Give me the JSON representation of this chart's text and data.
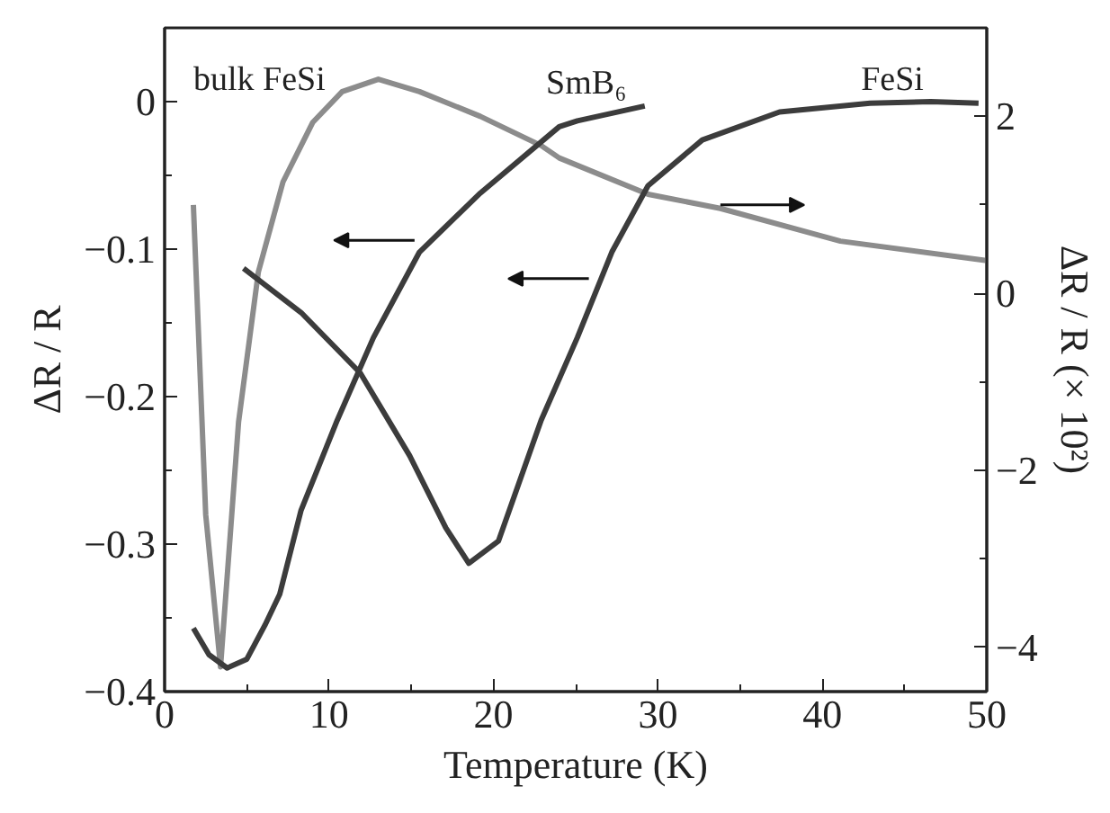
{
  "chart_data": {
    "type": "line",
    "xlabel": "Temperature (K)",
    "ylabel": "ΔR / R",
    "y2label": "ΔR / R (× 10²)",
    "xlim": [
      0,
      50
    ],
    "xticks": [
      0,
      {
        "value": 5,
        "label": null
      },
      10,
      {
        "value": 15,
        "label": null
      },
      20,
      {
        "value": 25,
        "label": null
      },
      30,
      {
        "value": 35,
        "label": null
      },
      40,
      {
        "value": 45,
        "label": null
      },
      50
    ],
    "ylim": [
      -0.4,
      0.05
    ],
    "yticks": [
      {
        "value": -0.4,
        "label": "−0.4"
      },
      {
        "value": -0.35,
        "label": null
      },
      {
        "value": -0.3,
        "label": "−0.3"
      },
      {
        "value": -0.25,
        "label": null
      },
      {
        "value": -0.2,
        "label": "−0.2"
      },
      {
        "value": -0.15,
        "label": null
      },
      {
        "value": -0.1,
        "label": "−0.1"
      },
      {
        "value": -0.05,
        "label": null
      },
      0
    ],
    "y2lim": [
      -4.5,
      3.0
    ],
    "y2ticks": [
      {
        "value": -4,
        "label": "−4"
      },
      {
        "value": -3,
        "label": null
      },
      {
        "value": -2,
        "label": "−2"
      },
      {
        "value": -1,
        "label": null
      },
      0,
      {
        "value": 1,
        "label": null
      },
      2
    ],
    "grid": false,
    "legend": false,
    "marker": "none",
    "line_style": "solid",
    "series": [
      {
        "name": "bulk FeSi",
        "color": "#8c8c8c",
        "axis": "y2",
        "x": [
          1.75,
          2.5,
          3.4,
          4.5,
          5.7,
          7.2,
          9.0,
          10.8,
          13.0,
          15.5,
          19.2,
          22.9,
          24.0,
          29.4,
          33.8,
          41.1,
          50.0
        ],
        "values": [
          1.0,
          -2.5,
          -4.22,
          -1.45,
          0.24,
          1.26,
          1.93,
          2.28,
          2.42,
          2.28,
          2.0,
          1.67,
          1.53,
          1.12,
          0.96,
          0.59,
          0.37
        ]
      },
      {
        "name": "SmB₆",
        "color": "#3c3c3c",
        "x": [
          1.75,
          2.7,
          3.8,
          5.0,
          6.1,
          7.0,
          8.3,
          10.5,
          12.7,
          15.5,
          19.2,
          24.0,
          25.1,
          29.2
        ],
        "values": [
          -0.357,
          -0.375,
          -0.384,
          -0.378,
          -0.355,
          -0.334,
          -0.277,
          -0.216,
          -0.16,
          -0.102,
          -0.062,
          -0.017,
          -0.013,
          -0.003
        ]
      },
      {
        "name": "FeSi",
        "color": "#3c3c3c",
        "x": [
          4.8,
          8.3,
          11.9,
          14.9,
          17.1,
          18.5,
          20.3,
          22.9,
          25.1,
          27.2,
          29.4,
          32.7,
          37.4,
          42.9,
          46.6,
          49.5
        ],
        "values": [
          -0.113,
          -0.143,
          -0.184,
          -0.24,
          -0.289,
          -0.313,
          -0.298,
          -0.216,
          -0.16,
          -0.102,
          -0.057,
          -0.026,
          -0.007,
          -0.001,
          0.0,
          -0.001
        ]
      }
    ]
  }
}
